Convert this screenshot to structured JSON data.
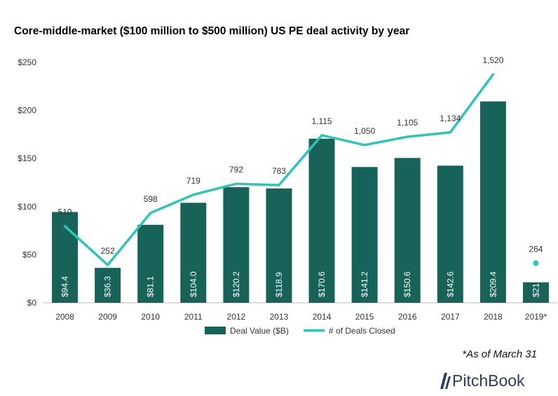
{
  "title": "Core-middle-market ($100 million to $500 million) US PE deal activity by year",
  "footnote": "*As of March 31",
  "brand": "PitchBook",
  "colors": {
    "bar": "#17635a",
    "line": "#2ec4b6"
  },
  "chart_data": {
    "type": "bar+line",
    "categories": [
      "2008",
      "2009",
      "2010",
      "2011",
      "2012",
      "2013",
      "2014",
      "2015",
      "2016",
      "2017",
      "2018",
      "2019*"
    ],
    "series": [
      {
        "name": "Deal Value ($B)",
        "type": "bar",
        "values": [
          94.4,
          36.3,
          81.1,
          104.0,
          120.2,
          118.9,
          170.6,
          141.2,
          150.6,
          142.6,
          209.4,
          21.3
        ],
        "labels": [
          "$94.4",
          "$36.3",
          "$81.1",
          "$104.0",
          "$120.2",
          "$118.9",
          "$170.6",
          "$141.2",
          "$150.6",
          "$142.6",
          "$209.4",
          "$21.3"
        ]
      },
      {
        "name": "# of Deals Closed",
        "type": "line",
        "values": [
          510,
          252,
          598,
          719,
          792,
          783,
          1115,
          1050,
          1105,
          1134,
          1520,
          264
        ],
        "labels": [
          "510",
          "252",
          "598",
          "719",
          "792",
          "783",
          "1,115",
          "1,050",
          "1,105",
          "1,134",
          "1,520",
          "264"
        ],
        "separate_last_point": true
      }
    ],
    "y_left": {
      "ticks": [
        "$0",
        "$50",
        "$100",
        "$150",
        "$200",
        "$250"
      ],
      "range": [
        0,
        250
      ]
    },
    "y_right_range": [
      0,
      1600
    ],
    "legend_position": "bottom",
    "grid": false
  }
}
